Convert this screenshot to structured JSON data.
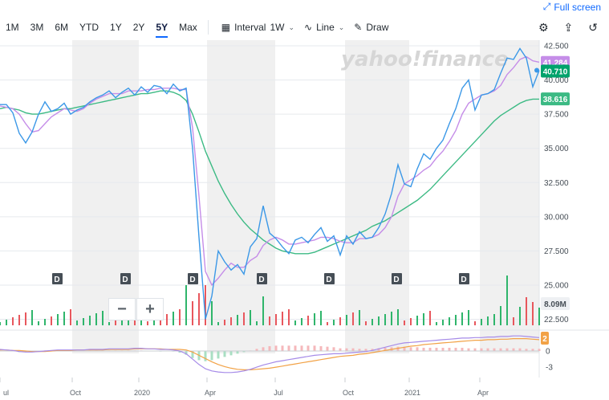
{
  "fullscreen": {
    "label": "Full screen"
  },
  "toolbar": {
    "ranges": [
      "1M",
      "3M",
      "6M",
      "YTD",
      "1Y",
      "2Y",
      "5Y",
      "Max"
    ],
    "active_range": "5Y",
    "interval_label": "Interval",
    "interval_value": "1W",
    "chart_type": "Line",
    "draw_label": "Draw"
  },
  "watermark": "yahoo!finance",
  "zoom": {
    "minus": "−",
    "plus": "+"
  },
  "chart_data": {
    "type": "line",
    "x_ticks": [
      "ul",
      "Oct",
      "2020",
      "Apr",
      "Jul",
      "Oct",
      "2021",
      "Apr"
    ],
    "y_ticks": [
      "42.500",
      "40.000",
      "37.500",
      "35.000",
      "32.500",
      "30.000",
      "27.500",
      "25.000",
      "22.500"
    ],
    "ylim": [
      22.5,
      42.5
    ],
    "badges": {
      "price": "40.710",
      "ma_short": "41.284",
      "ma_long": "38.616",
      "volume": "8.09M",
      "macd": "2"
    },
    "macd_ticks": [
      "0",
      "-3"
    ],
    "dividend_label": "D",
    "colors": {
      "price": "#3b98e7",
      "ma_short": "#c58de8",
      "ma_long": "#3cba84",
      "vol_up": "#2fb56b",
      "vol_down": "#e8575d",
      "macd": "#a68be8",
      "signal": "#f2a246"
    },
    "series": [
      {
        "values": [
          38.2,
          38.2,
          37.6,
          36.1,
          35.4,
          36.2,
          37.5,
          38.4,
          37.7,
          37.9,
          38.3,
          37.5,
          37.8,
          38.0,
          38.4,
          38.7,
          38.9,
          39.2,
          38.7,
          39.1,
          39.4,
          38.9,
          39.5,
          39.1,
          39.6,
          39.5,
          39.0,
          39.7,
          39.2,
          39.4,
          35.0,
          28.5,
          22.5,
          24.2,
          27.5,
          26.7,
          26.1,
          26.5,
          25.8,
          27.8,
          28.4,
          30.8,
          28.8,
          28.4,
          27.8,
          27.3,
          28.3,
          28.5,
          28.1,
          28.7,
          29.2,
          28.2,
          28.6,
          27.2,
          28.6,
          28.0,
          28.9,
          28.4,
          28.5,
          29.2,
          30.2,
          31.7,
          33.8,
          32.4,
          32.2,
          33.5,
          34.6,
          34.2,
          35.0,
          35.6,
          36.8,
          37.9,
          39.4,
          40.0,
          37.8,
          38.9,
          39.0,
          39.3,
          40.5,
          41.6,
          41.5,
          42.3,
          41.6,
          39.5,
          40.7
        ]
      },
      {
        "values": [
          38.1,
          38.0,
          37.9,
          37.5,
          36.8,
          36.2,
          36.3,
          36.8,
          37.3,
          37.6,
          37.9,
          37.8,
          37.7,
          37.9,
          38.3,
          38.6,
          38.8,
          39.0,
          39.0,
          39.0,
          39.2,
          39.2,
          39.2,
          39.3,
          39.3,
          39.4,
          39.4,
          39.4,
          39.3,
          39.3,
          36.5,
          31.5,
          26.0,
          25.0,
          25.5,
          26.1,
          26.6,
          26.3,
          26.3,
          26.8,
          27.1,
          27.9,
          28.3,
          28.5,
          28.3,
          28.0,
          28.0,
          28.1,
          28.2,
          28.3,
          28.5,
          28.5,
          28.4,
          28.2,
          28.1,
          28.1,
          28.4,
          28.4,
          28.5,
          28.7,
          29.2,
          30.0,
          31.5,
          32.4,
          32.7,
          33.0,
          33.4,
          33.7,
          34.3,
          34.8,
          35.5,
          36.3,
          37.5,
          38.3,
          38.6,
          38.9,
          39.0,
          39.2,
          39.6,
          40.4,
          40.9,
          41.5,
          41.7,
          41.4,
          41.3
        ]
      },
      {
        "values": [
          37.9,
          38.0,
          37.9,
          37.8,
          37.6,
          37.5,
          37.5,
          37.6,
          37.7,
          37.8,
          37.9,
          37.9,
          38.0,
          38.1,
          38.2,
          38.3,
          38.4,
          38.5,
          38.6,
          38.7,
          38.8,
          38.9,
          39.0,
          39.0,
          39.1,
          39.2,
          39.2,
          39.1,
          38.9,
          38.5,
          37.5,
          36.2,
          34.8,
          33.7,
          32.6,
          31.7,
          30.9,
          30.2,
          29.6,
          29.1,
          28.7,
          28.3,
          28.0,
          27.7,
          27.5,
          27.4,
          27.3,
          27.3,
          27.3,
          27.4,
          27.6,
          27.8,
          28.0,
          28.2,
          28.4,
          28.6,
          28.8,
          29.0,
          29.3,
          29.5,
          29.7,
          30.0,
          30.3,
          30.6,
          30.9,
          31.2,
          31.6,
          32.0,
          32.5,
          33.0,
          33.5,
          34.0,
          34.5,
          35.0,
          35.5,
          36.0,
          36.5,
          37.0,
          37.4,
          37.7,
          38.0,
          38.3,
          38.5,
          38.6,
          38.6
        ]
      },
      {
        "values": [
          0.3,
          0.2,
          0.1,
          -0.1,
          -0.2,
          -0.2,
          -0.1,
          0.0,
          0.1,
          0.2,
          0.2,
          0.2,
          0.2,
          0.2,
          0.3,
          0.3,
          0.3,
          0.4,
          0.4,
          0.4,
          0.4,
          0.5,
          0.5,
          0.4,
          0.4,
          0.3,
          0.3,
          0.2,
          0.0,
          -0.5,
          -1.5,
          -2.5,
          -3.3,
          -3.7,
          -3.9,
          -4.0,
          -4.0,
          -3.9,
          -3.7,
          -3.4,
          -3.0,
          -2.6,
          -2.3,
          -2.0,
          -1.8,
          -1.6,
          -1.4,
          -1.2,
          -1.0,
          -0.8,
          -0.7,
          -0.6,
          -0.5,
          -0.5,
          -0.4,
          -0.3,
          -0.2,
          -0.1,
          0.1,
          0.4,
          0.7,
          1.0,
          1.3,
          1.5,
          1.6,
          1.7,
          1.8,
          1.9,
          2.0,
          2.1,
          2.2,
          2.3,
          2.4,
          2.4,
          2.5,
          2.5,
          2.6,
          2.6,
          2.7,
          2.7,
          2.8,
          2.8,
          2.7,
          2.6,
          2.5
        ]
      },
      {
        "values": [
          0.2,
          0.2,
          0.1,
          0.1,
          0.0,
          -0.1,
          -0.1,
          -0.1,
          0.0,
          0.1,
          0.1,
          0.1,
          0.2,
          0.2,
          0.2,
          0.2,
          0.2,
          0.3,
          0.3,
          0.3,
          0.3,
          0.4,
          0.4,
          0.4,
          0.4,
          0.4,
          0.3,
          0.3,
          0.3,
          0.2,
          -0.2,
          -0.8,
          -1.4,
          -2.0,
          -2.5,
          -2.9,
          -3.2,
          -3.4,
          -3.5,
          -3.5,
          -3.4,
          -3.3,
          -3.2,
          -3.0,
          -2.8,
          -2.6,
          -2.4,
          -2.2,
          -2.0,
          -1.8,
          -1.6,
          -1.4,
          -1.2,
          -1.0,
          -0.9,
          -0.8,
          -0.6,
          -0.5,
          -0.3,
          -0.1,
          0.1,
          0.3,
          0.5,
          0.7,
          0.9,
          1.0,
          1.2,
          1.3,
          1.4,
          1.5,
          1.6,
          1.7,
          1.8,
          1.9,
          2.0,
          2.0,
          2.1,
          2.1,
          2.2,
          2.2,
          2.3,
          2.3,
          2.3,
          2.2,
          2.1
        ]
      }
    ]
  }
}
